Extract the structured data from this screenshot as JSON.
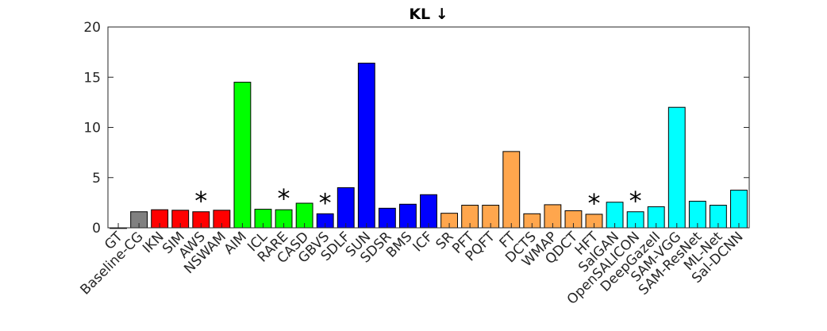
{
  "chart_data": {
    "type": "bar",
    "title": "KL ↓",
    "xlabel": "",
    "ylabel": "",
    "ylim": [
      0,
      20
    ],
    "yticks": [
      0,
      5,
      10,
      15,
      20
    ],
    "grid": false,
    "legend": "none",
    "categories": [
      "GT",
      "Baseline-CG",
      "IKN",
      "SIM",
      "AWS",
      "NSWAM",
      "AIM",
      "ICL",
      "RARE",
      "CASD",
      "GBVS",
      "SDLF",
      "SUN",
      "SDSR",
      "BMS",
      "ICF",
      "SR",
      "PFT",
      "PQFT",
      "FT",
      "DCTS",
      "WMAP",
      "QDCT",
      "HFT",
      "SalGAN",
      "OpenSALICON",
      "DeepGazeII",
      "SAM-VGG",
      "SAM-ResNet",
      "ML-Net",
      "Sal-DCNN"
    ],
    "values": [
      0.0,
      1.6,
      1.8,
      1.75,
      1.6,
      1.75,
      14.5,
      1.85,
      1.8,
      2.45,
      1.4,
      4.0,
      16.4,
      1.95,
      2.35,
      3.3,
      1.45,
      2.25,
      2.25,
      7.6,
      1.4,
      2.3,
      1.7,
      1.35,
      2.55,
      1.6,
      2.1,
      12.0,
      2.65,
      2.25,
      3.75
    ],
    "colors": [
      "#808080",
      "#808080",
      "#ff0000",
      "#ff0000",
      "#ff0000",
      "#ff0000",
      "#00ff00",
      "#00ff00",
      "#00ff00",
      "#00ff00",
      "#0000ff",
      "#0000ff",
      "#0000ff",
      "#0000ff",
      "#0000ff",
      "#0000ff",
      "#ffa64d",
      "#ffa64d",
      "#ffa64d",
      "#ffa64d",
      "#ffa64d",
      "#ffa64d",
      "#ffa64d",
      "#ffa64d",
      "#00ffff",
      "#00ffff",
      "#00ffff",
      "#00ffff",
      "#00ffff",
      "#00ffff",
      "#00ffff"
    ],
    "starred": [
      "AWS",
      "RARE",
      "GBVS",
      "HFT",
      "OpenSALICON"
    ],
    "star_symbol": "*"
  }
}
